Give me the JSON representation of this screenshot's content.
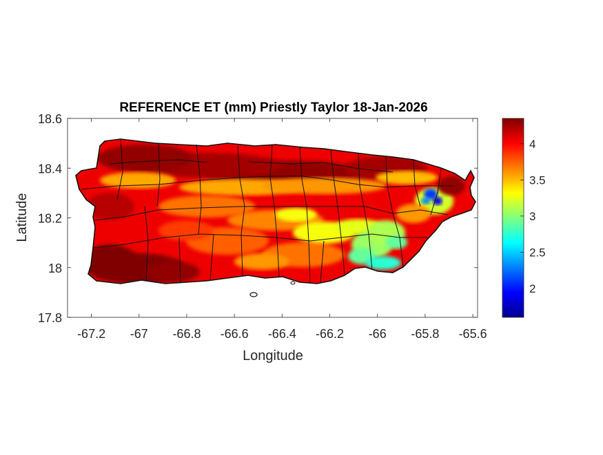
{
  "chart_data": {
    "type": "heatmap",
    "title": "REFERENCE ET (mm) Priestly Taylor 18-Jan-2026",
    "xlabel": "Longitude",
    "ylabel": "Latitude",
    "xlim": [
      -67.3,
      -65.58
    ],
    "ylim": [
      17.8,
      18.6
    ],
    "xticks": [
      -67.2,
      -67,
      -66.8,
      -66.6,
      -66.4,
      -66.2,
      -66,
      -65.8,
      -65.6
    ],
    "xtick_labels": [
      "-67.2",
      "-67",
      "-66.8",
      "-66.6",
      "-66.4",
      "-66.2",
      "-66",
      "-65.8",
      "-65.6"
    ],
    "yticks": [
      17.8,
      18,
      18.2,
      18.4,
      18.6
    ],
    "ytick_labels": [
      "17.8",
      "18",
      "18.2",
      "18.4",
      "18.6"
    ],
    "colorbar": {
      "colormap": "jet",
      "range": [
        1.6,
        4.35
      ],
      "ticks": [
        2,
        2.5,
        3,
        3.5,
        4
      ],
      "tick_labels": [
        "2",
        "2.5",
        "3",
        "3.5",
        "4"
      ]
    },
    "region": "Puerto Rico (municipality boundaries)",
    "grid": false
  }
}
